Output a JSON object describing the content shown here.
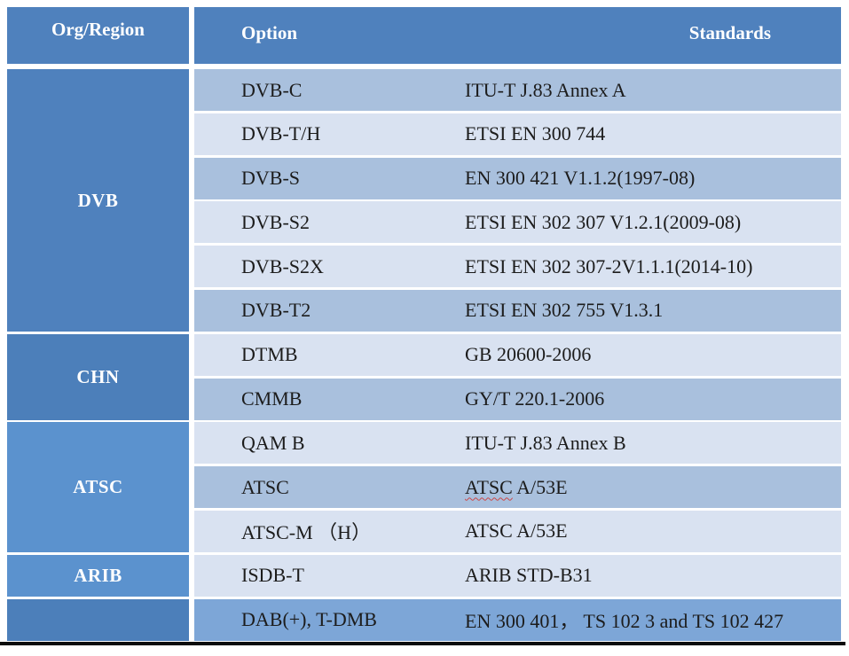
{
  "header": {
    "org_region": "Org/Region",
    "option": "Option",
    "standards": "Standards"
  },
  "org_groups": [
    {
      "label": "DVB",
      "row_span": 6
    },
    {
      "label": "CHN",
      "row_span": 2
    },
    {
      "label": "ATSC",
      "row_span": 3
    },
    {
      "label": "ARIB",
      "row_span": 1
    },
    {
      "label": "",
      "row_span": 1
    }
  ],
  "rows": [
    {
      "option": "DVB-C",
      "standard": "ITU-T J.83 Annex A"
    },
    {
      "option": "DVB-T/H",
      "standard": "ETSI EN 300 744"
    },
    {
      "option": "DVB-S",
      "standard": "EN 300 421 V1.1.2(1997-08)"
    },
    {
      "option": "DVB-S2",
      "standard": "ETSI EN 302 307 V1.2.1(2009-08)"
    },
    {
      "option": "DVB-S2X",
      "standard": "ETSI EN 302 307-2V1.1.1(2014-10)"
    },
    {
      "option": "DVB-T2",
      "standard": "ETSI EN 302 755 V1.3.1"
    },
    {
      "option": "DTMB",
      "standard": "GB 20600-2006"
    },
    {
      "option": "CMMB",
      "standard": "GY/T 220.1-2006"
    },
    {
      "option": "QAM B",
      "standard": "ITU-T J.83 Annex B"
    },
    {
      "option": "ATSC",
      "standard_word_underlined": "ATSC",
      "standard_rest": " A/53E"
    },
    {
      "option": "ATSC-M （H）",
      "standard": "ATSC A/53E"
    },
    {
      "option": "ISDB-T",
      "standard": "ARIB STD-B31"
    },
    {
      "option": "DAB(+), T-DMB",
      "standard": "EN 300 401， TS 102 3 and TS 102 427"
    }
  ],
  "colors": {
    "header_blue": "#4f81bd",
    "group_blue_dark": "#4c7fba",
    "group_blue_light": "#5b92ce",
    "row_dark": "#a9c0dd",
    "row_light": "#d9e2f1",
    "row_accent": "#7da6d7",
    "spellcheck_underline": "#cc4747",
    "text": "#1c1c1c"
  }
}
